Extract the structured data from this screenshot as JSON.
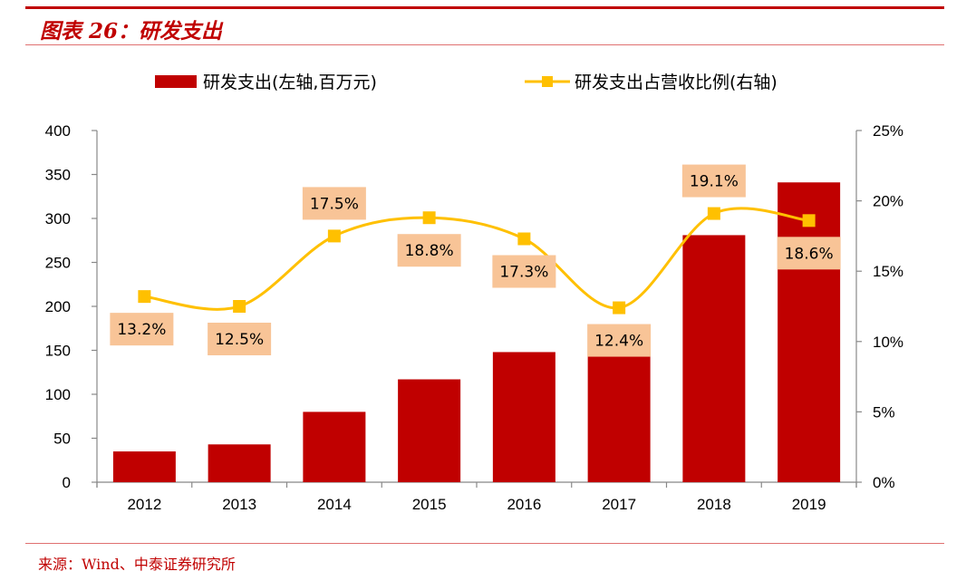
{
  "header": {
    "title": "图表 26：研发支出"
  },
  "footer": {
    "source": "来源：Wind、中泰证券研究所"
  },
  "colors": {
    "bar": "#c00000",
    "line": "#ffc000",
    "label_bg": "#f8c497",
    "axis": "#888888",
    "brand": "#c00000"
  },
  "chart_data": {
    "type": "bar+line",
    "categories": [
      "2012",
      "2013",
      "2014",
      "2015",
      "2016",
      "2017",
      "2018",
      "2019"
    ],
    "series": [
      {
        "name": "研发支出(左轴,百万元)",
        "type": "bar",
        "axis": "left",
        "values": [
          35,
          43,
          80,
          117,
          148,
          146,
          281,
          341
        ]
      },
      {
        "name": "研发支出占营收比例(右轴)",
        "type": "line",
        "axis": "right",
        "values": [
          13.2,
          12.5,
          17.5,
          18.8,
          17.3,
          12.4,
          19.1,
          18.6
        ],
        "data_labels": [
          "13.2%",
          "12.5%",
          "17.5%",
          "18.8%",
          "17.3%",
          "12.4%",
          "19.1%",
          "18.6%"
        ]
      }
    ],
    "left_axis": {
      "ylim": [
        0,
        400
      ],
      "ticks": [
        "0",
        "50",
        "100",
        "150",
        "200",
        "250",
        "300",
        "350",
        "400"
      ]
    },
    "right_axis": {
      "ylim": [
        0,
        25
      ],
      "ticks": [
        "0%",
        "5%",
        "10%",
        "15%",
        "20%",
        "25%"
      ]
    },
    "legend": {
      "position": "top",
      "entries": [
        "研发支出(左轴,百万元)",
        "研发支出占营收比例(右轴)"
      ]
    },
    "grid": false
  }
}
